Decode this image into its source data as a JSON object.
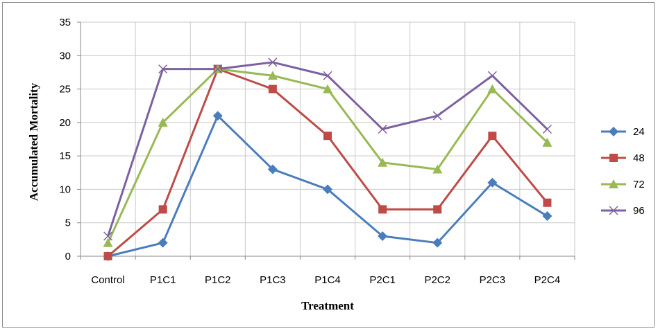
{
  "chart_data": {
    "type": "line",
    "title": "",
    "xlabel": "Treatment",
    "ylabel": "Accumulated Mortality",
    "categories": [
      "Control",
      "P1C1",
      "P1C2",
      "P1C3",
      "P1C4",
      "P2C1",
      "P2C2",
      "P2C3",
      "P2C4"
    ],
    "ylim": [
      0,
      35
    ],
    "yticks": [
      0,
      5,
      10,
      15,
      20,
      25,
      30,
      35
    ],
    "grid": true,
    "legend_position": "right",
    "series": [
      {
        "name": "24",
        "color": "#4a7ebb",
        "marker": "diamond",
        "values": [
          0,
          2,
          21,
          13,
          10,
          3,
          2,
          11,
          6
        ]
      },
      {
        "name": "48",
        "color": "#be4b48",
        "marker": "square",
        "values": [
          0,
          7,
          28,
          25,
          18,
          7,
          7,
          18,
          8
        ]
      },
      {
        "name": "72",
        "color": "#98b954",
        "marker": "triangle",
        "values": [
          2,
          20,
          28,
          27,
          25,
          14,
          13,
          25,
          17
        ]
      },
      {
        "name": "96",
        "color": "#7d60a0",
        "marker": "x",
        "values": [
          3,
          28,
          28,
          29,
          27,
          19,
          21,
          27,
          19
        ]
      }
    ]
  }
}
